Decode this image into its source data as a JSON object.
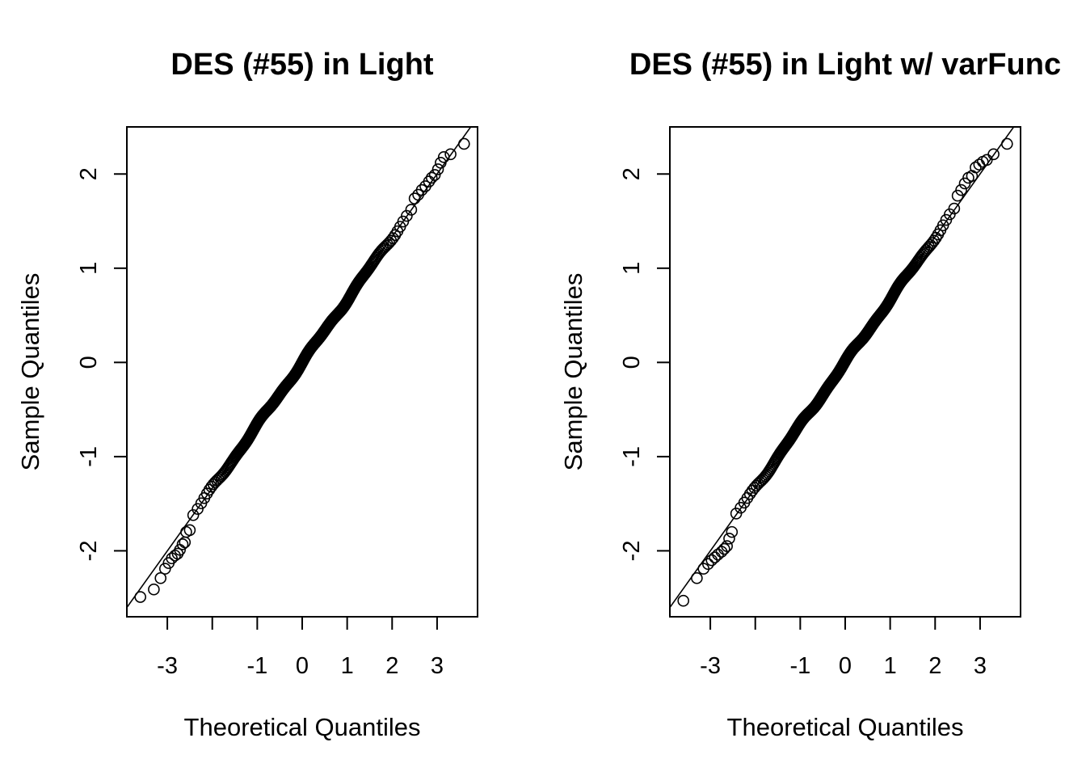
{
  "chart_data": [
    {
      "type": "scatter",
      "subtype": "qq-plot",
      "title": "DES (#55) in Light",
      "xlabel": "Theoretical Quantiles",
      "ylabel": "Sample Quantiles",
      "xlim": [
        -3.9,
        3.9
      ],
      "ylim": [
        -2.7,
        2.5
      ],
      "xticks": [
        -3,
        -2,
        -1,
        0,
        1,
        2,
        3
      ],
      "xtick_labels": [
        "-3",
        "",
        "-1",
        "0",
        "1",
        "2",
        "3"
      ],
      "yticks": [
        -2,
        -1,
        0,
        1,
        2
      ],
      "ytick_labels": [
        "-2",
        "-1",
        "0",
        "1",
        "2"
      ],
      "grid": false,
      "point_count": 5000,
      "reference_line": {
        "intercept": 0.0,
        "slope": 0.667
      },
      "tail_points": [
        [
          -3.6,
          -2.49
        ],
        [
          -3.3,
          -2.41
        ],
        [
          -3.15,
          -2.29
        ],
        [
          -3.05,
          -2.19
        ],
        [
          -2.97,
          -2.13
        ],
        [
          -2.9,
          -2.08
        ],
        [
          -2.83,
          -2.05
        ],
        [
          -2.77,
          -2.03
        ],
        [
          -2.72,
          -1.99
        ],
        [
          -2.66,
          -1.93
        ],
        [
          -2.61,
          -1.91
        ],
        [
          -2.58,
          -1.8
        ],
        [
          -2.5,
          -1.78
        ],
        [
          2.5,
          1.74
        ],
        [
          2.58,
          1.78
        ],
        [
          2.66,
          1.83
        ],
        [
          2.74,
          1.87
        ],
        [
          2.82,
          1.92
        ],
        [
          2.88,
          1.96
        ],
        [
          2.95,
          1.99
        ],
        [
          3.02,
          2.05
        ],
        [
          3.08,
          2.12
        ],
        [
          3.15,
          2.18
        ],
        [
          3.3,
          2.21
        ],
        [
          3.6,
          2.32
        ]
      ]
    },
    {
      "type": "scatter",
      "subtype": "qq-plot",
      "title": "DES (#55) in Light w/ varFunc",
      "xlabel": "Theoretical Quantiles",
      "ylabel": "Sample Quantiles",
      "xlim": [
        -3.9,
        3.9
      ],
      "ylim": [
        -2.7,
        2.5
      ],
      "xticks": [
        -3,
        -2,
        -1,
        0,
        1,
        2,
        3
      ],
      "xtick_labels": [
        "-3",
        "",
        "-1",
        "0",
        "1",
        "2",
        "3"
      ],
      "yticks": [
        -2,
        -1,
        0,
        1,
        2
      ],
      "ytick_labels": [
        "-2",
        "-1",
        "0",
        "1",
        "2"
      ],
      "grid": false,
      "point_count": 5000,
      "reference_line": {
        "intercept": 0.0,
        "slope": 0.667
      },
      "tail_points": [
        [
          -3.6,
          -2.53
        ],
        [
          -3.3,
          -2.29
        ],
        [
          -3.15,
          -2.19
        ],
        [
          -3.05,
          -2.14
        ],
        [
          -2.97,
          -2.1
        ],
        [
          -2.9,
          -2.07
        ],
        [
          -2.83,
          -2.04
        ],
        [
          -2.75,
          -2.01
        ],
        [
          -2.69,
          -1.98
        ],
        [
          -2.63,
          -1.95
        ],
        [
          -2.58,
          -1.87
        ],
        [
          -2.52,
          -1.8
        ],
        [
          2.5,
          1.77
        ],
        [
          2.58,
          1.83
        ],
        [
          2.66,
          1.9
        ],
        [
          2.74,
          1.96
        ],
        [
          2.82,
          1.98
        ],
        [
          2.9,
          2.07
        ],
        [
          2.98,
          2.1
        ],
        [
          3.06,
          2.13
        ],
        [
          3.15,
          2.15
        ],
        [
          3.3,
          2.21
        ],
        [
          3.6,
          2.32
        ]
      ]
    }
  ]
}
